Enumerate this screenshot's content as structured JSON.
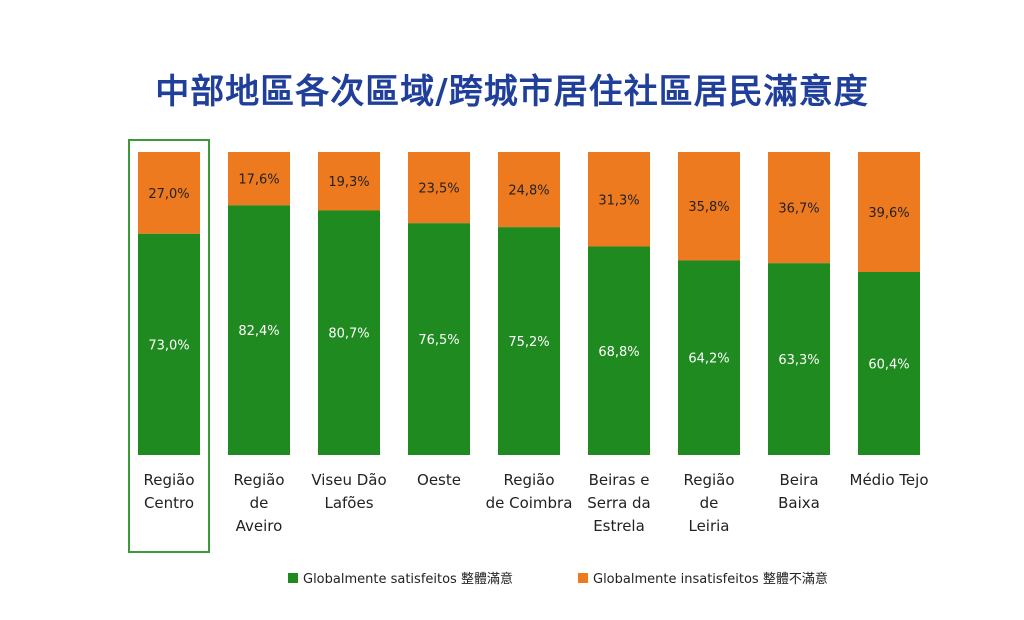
{
  "colors": {
    "satisfied": "#1f8a1f",
    "dissatisfied": "#ee7a1f",
    "highlight_border": "#3c9a3c",
    "title": "#1f3f9a"
  },
  "chart_data": {
    "type": "bar",
    "stacked": true,
    "title": "中部地區各次區域/跨城市居住社區居民滿意度",
    "categories": [
      "Região Centro",
      "Região de Aveiro",
      "Viseu Dão Lafões",
      "Oeste",
      "Região de Coimbra",
      "Beiras e Serra da Estrela",
      "Região de Leiria",
      "Beira Baixa",
      "Médio Tejo"
    ],
    "category_label_lines": [
      [
        "Região",
        "Centro"
      ],
      [
        "Região",
        "de",
        "Aveiro"
      ],
      [
        "Viseu Dão",
        "Lafões"
      ],
      [
        "Oeste"
      ],
      [
        "Região",
        "de Coimbra"
      ],
      [
        "Beiras e",
        "Serra da",
        "Estrela"
      ],
      [
        "Região",
        "de",
        "Leiria"
      ],
      [
        "Beira",
        "Baixa"
      ],
      [
        "Médio Tejo"
      ]
    ],
    "series": [
      {
        "name": "Globalmente satisfeitos 整體滿意",
        "values": [
          73.0,
          82.4,
          80.7,
          76.5,
          75.2,
          68.8,
          64.2,
          63.3,
          60.4
        ],
        "labels": [
          "73,0%",
          "82,4%",
          "80,7%",
          "76,5%",
          "75,2%",
          "68,8%",
          "64,2%",
          "63,3%",
          "60,4%"
        ]
      },
      {
        "name": "Globalmente insatisfeitos 整體不滿意",
        "values": [
          27.0,
          17.6,
          19.3,
          23.5,
          24.8,
          31.3,
          35.8,
          36.7,
          39.6
        ],
        "labels": [
          "27,0%",
          "17,6%",
          "19,3%",
          "23,5%",
          "24,8%",
          "31,3%",
          "35,8%",
          "36,7%",
          "39,6%"
        ]
      }
    ],
    "ylim": [
      0,
      100
    ],
    "highlighted_category": "Região Centro",
    "legend_position": "bottom"
  }
}
